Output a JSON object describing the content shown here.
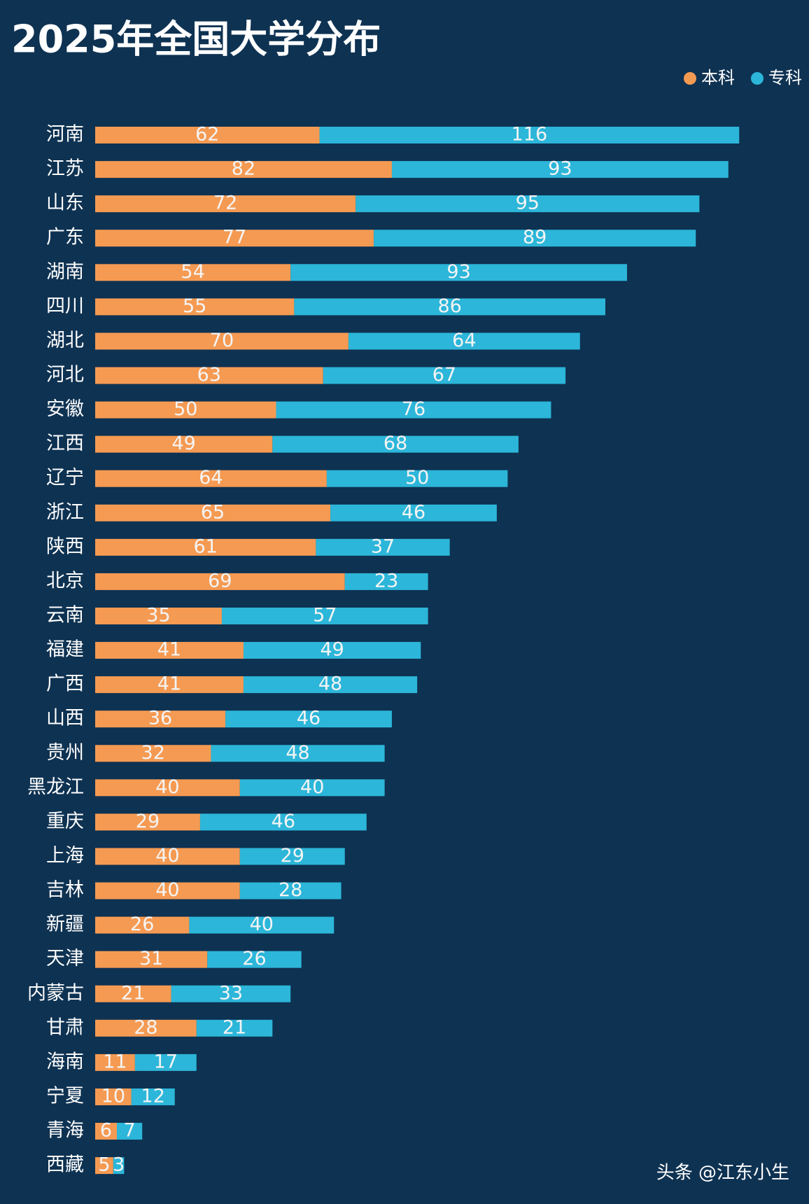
{
  "chart_data": {
    "type": "bar",
    "orientation": "horizontal",
    "stacked": true,
    "title": "2025年全国大学分布",
    "categories": [
      "河南",
      "江苏",
      "山东",
      "广东",
      "湖南",
      "四川",
      "湖北",
      "河北",
      "安徽",
      "江西",
      "辽宁",
      "浙江",
      "陕西",
      "北京",
      "云南",
      "福建",
      "广西",
      "山西",
      "贵州",
      "黑龙江",
      "重庆",
      "上海",
      "吉林",
      "新疆",
      "天津",
      "内蒙古",
      "甘肃",
      "海南",
      "宁夏",
      "青海",
      "西藏"
    ],
    "series": [
      {
        "name": "本科",
        "color": "#f59a52",
        "values": [
          62,
          82,
          72,
          77,
          54,
          55,
          70,
          63,
          50,
          49,
          64,
          65,
          61,
          69,
          35,
          41,
          41,
          36,
          32,
          40,
          29,
          40,
          40,
          26,
          31,
          21,
          28,
          11,
          10,
          6,
          5
        ]
      },
      {
        "name": "专科",
        "color": "#2cb6d9",
        "values": [
          116,
          93,
          95,
          89,
          93,
          86,
          64,
          67,
          76,
          68,
          50,
          46,
          37,
          23,
          57,
          49,
          48,
          46,
          48,
          40,
          46,
          29,
          28,
          40,
          26,
          33,
          21,
          17,
          12,
          7,
          3
        ]
      }
    ],
    "legend": "top-right",
    "watermark": "头条 @江东小生"
  }
}
